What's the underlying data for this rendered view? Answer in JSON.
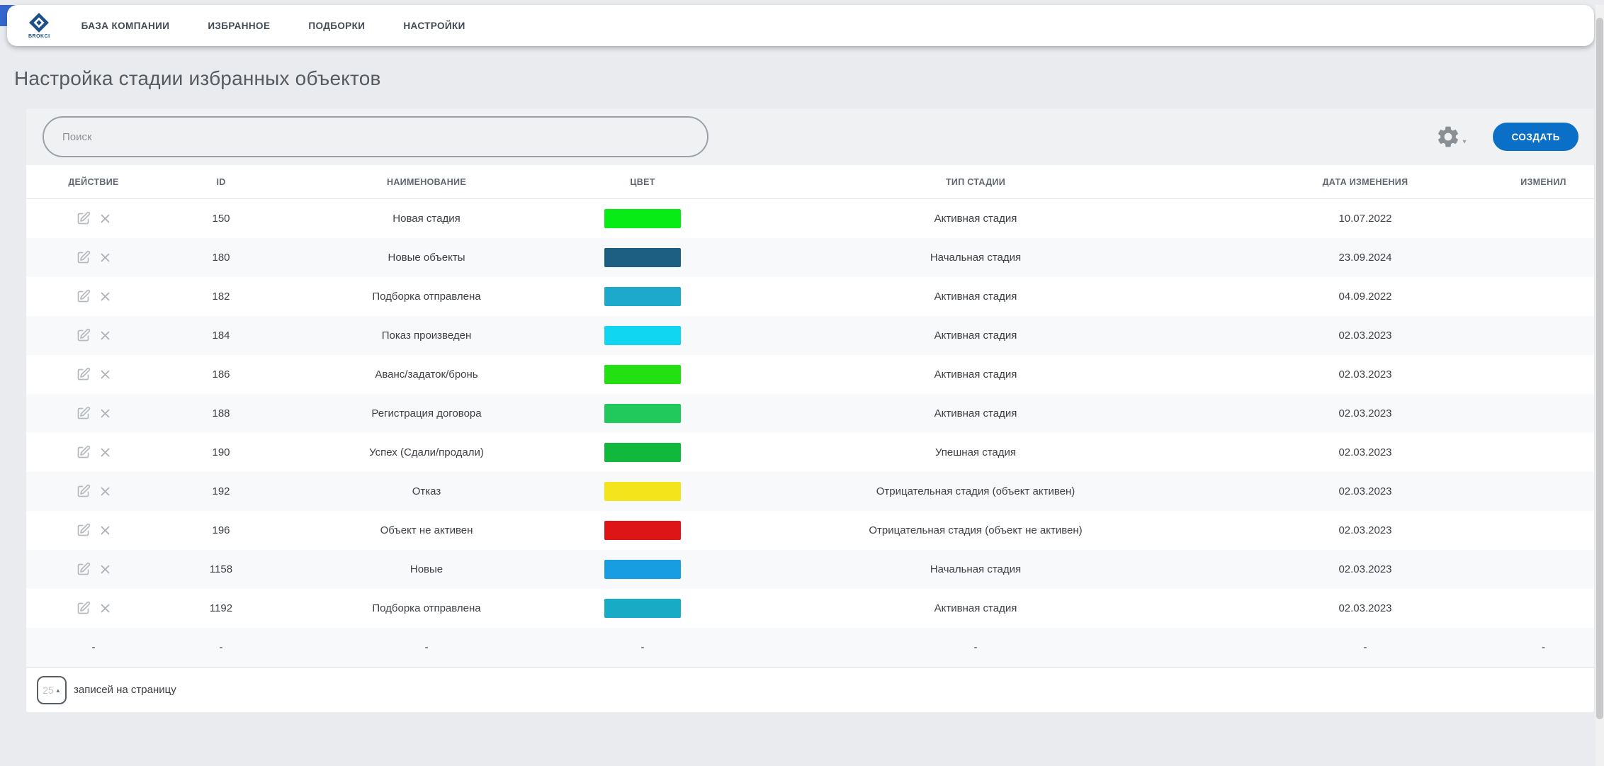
{
  "nav": {
    "logo_text": "BROKCI",
    "items": [
      {
        "label": "БАЗА КОМПАНИИ"
      },
      {
        "label": "ИЗБРАННОЕ"
      },
      {
        "label": "ПОДБОРКИ"
      },
      {
        "label": "НАСТРОЙКИ"
      }
    ]
  },
  "page": {
    "title": "Настройка стадии избранных объектов"
  },
  "toolbar": {
    "search_placeholder": "Поиск",
    "create_label": "СОЗДАТЬ",
    "accent_color": "#0a70c7",
    "icons": {
      "settings": "gear-icon",
      "settings_caret": "chevron-down-icon"
    }
  },
  "table": {
    "columns": [
      "ДЕЙСТВИЕ",
      "ID",
      "НАИМЕНОВАНИЕ",
      "ЦВЕТ",
      "ТИП СТАДИИ",
      "ДАТА ИЗМЕНЕНИЯ",
      "ИЗМЕНИЛ"
    ],
    "action_icons": [
      "edit-icon",
      "delete-icon"
    ],
    "rows": [
      {
        "id": "150",
        "name": "Новая стадия",
        "color": "#06ec14",
        "type": "Активная стадия",
        "date": "10.07.2022",
        "changed_by": ""
      },
      {
        "id": "180",
        "name": "Новые объекты",
        "color": "#1d5f82",
        "type": "Начальная стадия",
        "date": "23.09.2024",
        "changed_by": ""
      },
      {
        "id": "182",
        "name": "Подборка отправлена",
        "color": "#1ca9cc",
        "type": "Активная стадия",
        "date": "04.09.2022",
        "changed_by": ""
      },
      {
        "id": "184",
        "name": "Показ произведен",
        "color": "#10d6f2",
        "type": "Активная стадия",
        "date": "02.03.2023",
        "changed_by": ""
      },
      {
        "id": "186",
        "name": "Аванс/задаток/бронь",
        "color": "#22e012",
        "type": "Активная стадия",
        "date": "02.03.2023",
        "changed_by": ""
      },
      {
        "id": "188",
        "name": "Регистрация договора",
        "color": "#21c95c",
        "type": "Активная стадия",
        "date": "02.03.2023",
        "changed_by": ""
      },
      {
        "id": "190",
        "name": "Успех (Сдали/продали)",
        "color": "#10b93c",
        "type": "Упешная стадия",
        "date": "02.03.2023",
        "changed_by": ""
      },
      {
        "id": "192",
        "name": "Отказ",
        "color": "#f4e41c",
        "type": "Отрицательная стадия (объект активен)",
        "date": "02.03.2023",
        "changed_by": ""
      },
      {
        "id": "196",
        "name": "Объект не активен",
        "color": "#dd1517",
        "type": "Отрицательная стадия (объект не активен)",
        "date": "02.03.2023",
        "changed_by": ""
      },
      {
        "id": "1158",
        "name": "Новые",
        "color": "#189de2",
        "type": "Начальная стадия",
        "date": "02.03.2023",
        "changed_by": ""
      },
      {
        "id": "1192",
        "name": "Подборка отправлена",
        "color": "#17abc6",
        "type": "Активная стадия",
        "date": "02.03.2023",
        "changed_by": ""
      },
      {
        "placeholder": true,
        "action": "-",
        "id": "-",
        "name": "-",
        "color_text": "-",
        "type": "-",
        "date": "-",
        "changed_by": "-"
      }
    ]
  },
  "pagination": {
    "per_page": "25",
    "label": "записей на страницу",
    "caret": "chevron-up-icon"
  },
  "brand_color": "#1d5088"
}
